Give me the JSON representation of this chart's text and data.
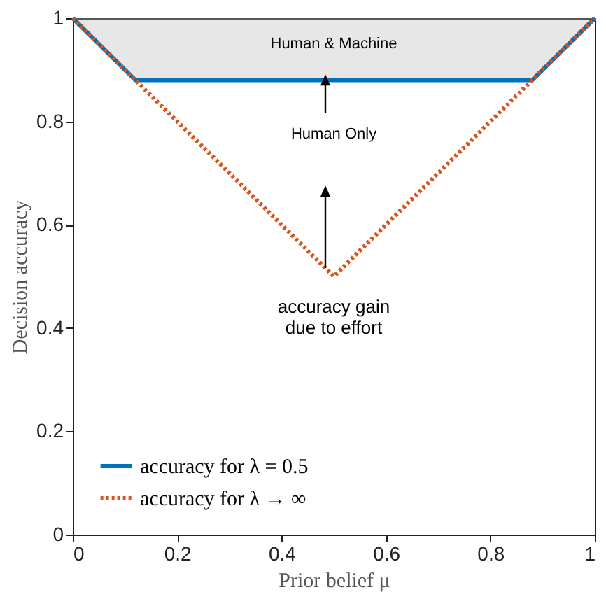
{
  "chart_data": {
    "type": "line",
    "xlabel": "Prior belief μ",
    "ylabel": "Decision accuracy",
    "xlim": [
      0,
      1
    ],
    "ylim": [
      0,
      1
    ],
    "xticks": [
      0,
      0.2,
      0.4,
      0.6,
      0.8,
      1
    ],
    "yticks": [
      0,
      0.2,
      0.4,
      0.6,
      0.8,
      1
    ],
    "grid": false,
    "legend": "bottom left",
    "marker": "none",
    "series": [
      {
        "name": "accuracy for λ = 0.5",
        "color": "#0072bd",
        "line_style": "solid",
        "x": [
          0,
          0.12,
          0.88,
          1
        ],
        "values": [
          1,
          0.88,
          0.88,
          1
        ],
        "lower": [
          1,
          0.88,
          0.88,
          1
        ],
        "upper": [
          1,
          1,
          1,
          1
        ]
      },
      {
        "name": "accuracy for λ → ∞",
        "color": "#d95319",
        "line_style": "dotted",
        "x": [
          0,
          0.5,
          1
        ],
        "values": [
          1,
          0.5,
          1
        ]
      }
    ],
    "annotations": [
      "Human & Machine",
      "Human Only",
      "accuracy gain\ndue to effort"
    ]
  }
}
